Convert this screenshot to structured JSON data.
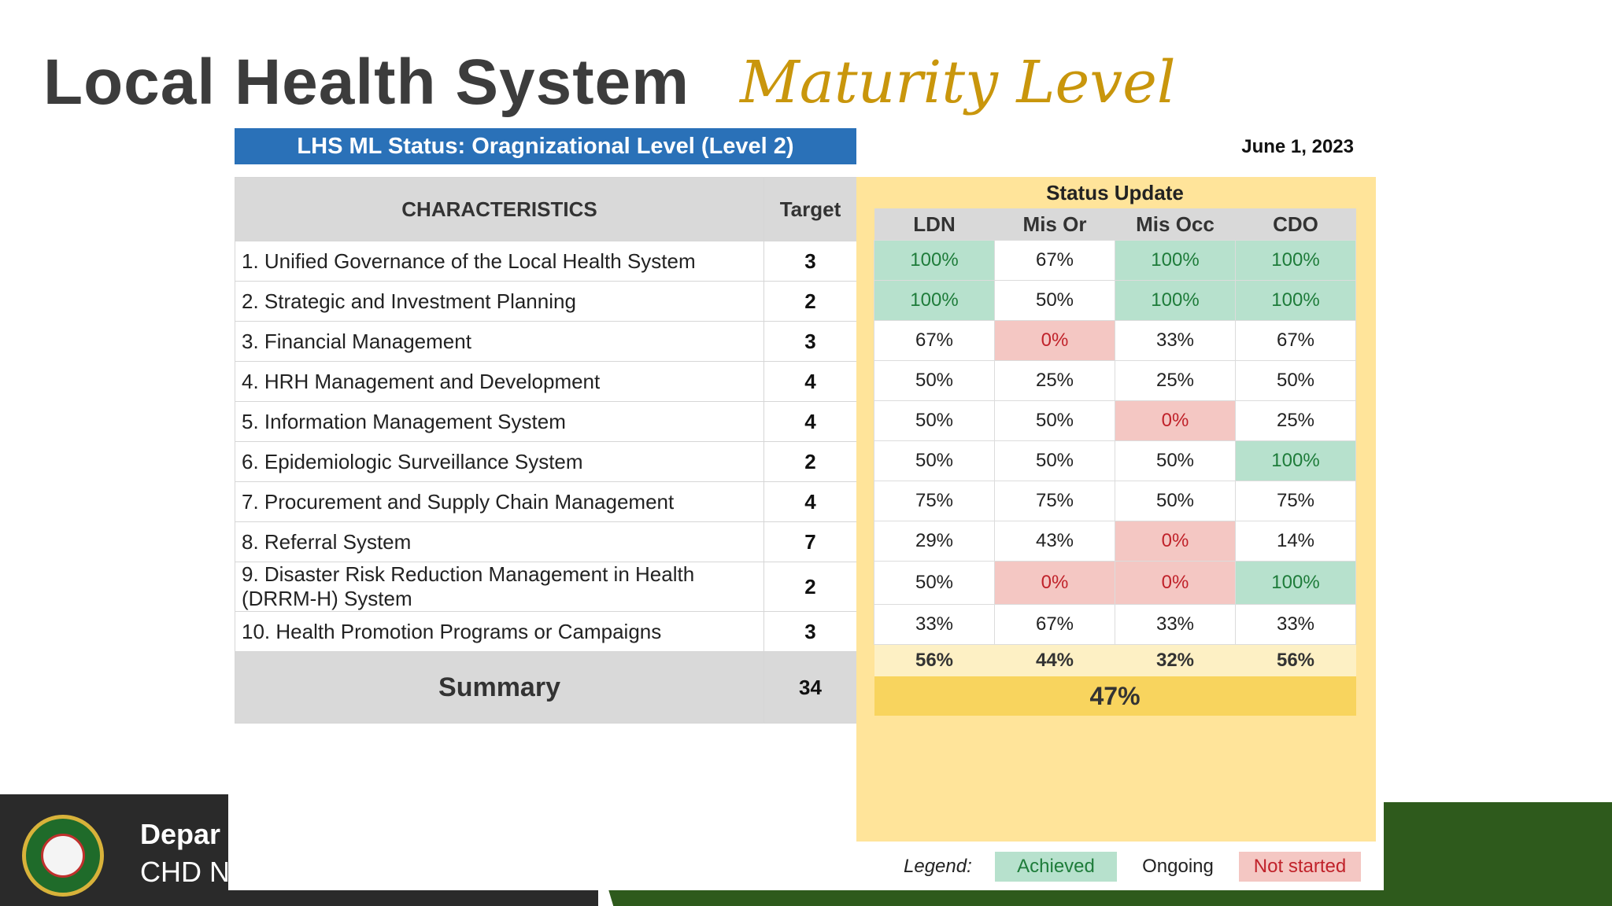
{
  "title": "Local Health System",
  "subtitle": "Maturity Level",
  "banner": "LHS ML Status: Oragnizational Level (Level 2)",
  "date": "June 1, 2023",
  "headers": {
    "characteristics": "CHARACTERISTICS",
    "target": "Target",
    "status_update": "Status Update",
    "columns": [
      "LDN",
      "Mis Or",
      "Mis Occ",
      "CDO"
    ]
  },
  "rows": [
    {
      "label": "1. Unified Governance of the Local Health System",
      "target": "3",
      "values": [
        "100%",
        "67%",
        "100%",
        "100%"
      ],
      "status": [
        "achieved",
        "ongoing",
        "achieved",
        "achieved"
      ]
    },
    {
      "label": "2. Strategic and Investment Planning",
      "target": "2",
      "values": [
        "100%",
        "50%",
        "100%",
        "100%"
      ],
      "status": [
        "achieved",
        "ongoing",
        "achieved",
        "achieved"
      ]
    },
    {
      "label": "3. Financial Management",
      "target": "3",
      "values": [
        "67%",
        "0%",
        "33%",
        "67%"
      ],
      "status": [
        "ongoing",
        "not-started",
        "ongoing",
        "ongoing"
      ]
    },
    {
      "label": "4. HRH Management and Development",
      "target": "4",
      "values": [
        "50%",
        "25%",
        "25%",
        "50%"
      ],
      "status": [
        "ongoing",
        "ongoing",
        "ongoing",
        "ongoing"
      ]
    },
    {
      "label": "5. Information Management System",
      "target": "4",
      "values": [
        "50%",
        "50%",
        "0%",
        "25%"
      ],
      "status": [
        "ongoing",
        "ongoing",
        "not-started",
        "ongoing"
      ]
    },
    {
      "label": "6. Epidemiologic Surveillance System",
      "target": "2",
      "values": [
        "50%",
        "50%",
        "50%",
        "100%"
      ],
      "status": [
        "ongoing",
        "ongoing",
        "ongoing",
        "achieved"
      ]
    },
    {
      "label": "7. Procurement and Supply Chain Management",
      "target": "4",
      "values": [
        "75%",
        "75%",
        "50%",
        "75%"
      ],
      "status": [
        "ongoing",
        "ongoing",
        "ongoing",
        "ongoing"
      ]
    },
    {
      "label": "8. Referral System",
      "target": "7",
      "values": [
        "29%",
        "43%",
        "0%",
        "14%"
      ],
      "status": [
        "ongoing",
        "ongoing",
        "not-started",
        "ongoing"
      ]
    },
    {
      "label": "9. Disaster Risk Reduction Management in Health (DRRM-H) System",
      "target": "2",
      "values": [
        "50%",
        "0%",
        "0%",
        "100%"
      ],
      "status": [
        "ongoing",
        "not-started",
        "not-started",
        "achieved"
      ]
    },
    {
      "label": "10. Health Promotion Programs or Campaigns",
      "target": "3",
      "values": [
        "33%",
        "67%",
        "33%",
        "33%"
      ],
      "status": [
        "ongoing",
        "ongoing",
        "ongoing",
        "ongoing"
      ]
    }
  ],
  "summary": {
    "label": "Summary",
    "target": "34",
    "column_percentages": [
      "56%",
      "44%",
      "32%",
      "56%"
    ],
    "overall": "47%"
  },
  "legend": {
    "label": "Legend:",
    "achieved": "Achieved",
    "ongoing": "Ongoing",
    "not_started": "Not started"
  },
  "footer": {
    "line1": "Depar",
    "line2": "CHD N"
  },
  "colors": {
    "achieved_bg": "#b7e1cd",
    "achieved_text": "#1e7c3a",
    "not_started_bg": "#f4c7c3",
    "not_started_text": "#c0222a",
    "banner": "#2a71b8",
    "status_panel": "#ffe49a",
    "overall": "#f8d45e",
    "subtitle": "#c9960c"
  }
}
